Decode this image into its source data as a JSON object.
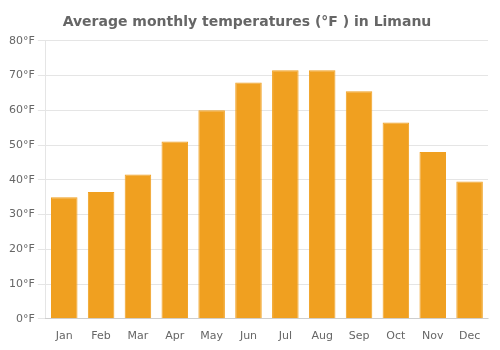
{
  "chart_data": {
    "type": "bar",
    "title": "Average monthly temperatures (°F ) in Limanu",
    "categories": [
      "Jan",
      "Feb",
      "Mar",
      "Apr",
      "May",
      "Jun",
      "Jul",
      "Aug",
      "Sep",
      "Oct",
      "Nov",
      "Dec"
    ],
    "values": [
      35,
      36.5,
      41.5,
      51,
      60,
      68,
      71.5,
      71.5,
      65.5,
      56.5,
      48,
      39.5
    ],
    "color": "#F0A020",
    "ylim": [
      0,
      80
    ],
    "yticks": [
      {
        "value": 0,
        "label": "0°F"
      },
      {
        "value": 10,
        "label": "10°F"
      },
      {
        "value": 20,
        "label": "20°F"
      },
      {
        "value": 30,
        "label": "30°F"
      },
      {
        "value": 40,
        "label": "40°F"
      },
      {
        "value": 50,
        "label": "50°F"
      },
      {
        "value": 60,
        "label": "60°F"
      },
      {
        "value": 70,
        "label": "70°F"
      },
      {
        "value": 80,
        "label": "80°F"
      }
    ],
    "grid": true
  }
}
